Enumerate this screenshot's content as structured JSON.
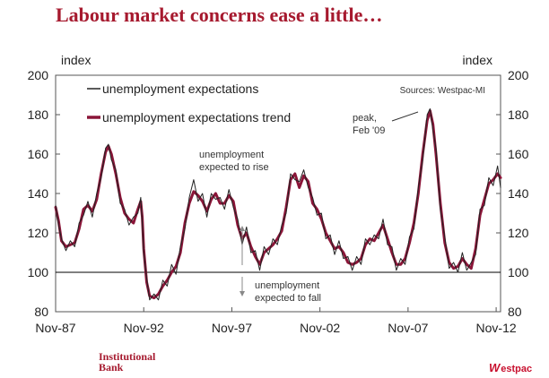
{
  "page": {
    "title": "Labour market concerns ease a little…",
    "brand_left": [
      "Institutional",
      "Bank"
    ],
    "brand_right_mark": "W",
    "brand_right": "estpac",
    "accent_color": "#a6192e"
  },
  "chart_data": {
    "type": "line",
    "title": "",
    "ylabel_left": "index",
    "ylabel_right": "index",
    "ylim": [
      80,
      200
    ],
    "yticks": [
      80,
      100,
      120,
      140,
      160,
      180,
      200
    ],
    "xlim": [
      "1987-11",
      "2013-02"
    ],
    "x_ticks": [
      "1987-11",
      "1992-11",
      "1997-11",
      "2002-11",
      "2007-11",
      "2012-11"
    ],
    "x_tick_labels": [
      "Nov-87",
      "Nov-92",
      "Nov-97",
      "Nov-02",
      "Nov-07",
      "Nov-12"
    ],
    "reference_line": 100,
    "source": "Sources: Westpac-MI",
    "legend": [
      {
        "label": "unemployment expectations",
        "color": "#222222"
      },
      {
        "label": "unemployment expectations trend",
        "color": "#8a1538"
      }
    ],
    "annotations": [
      {
        "text": [
          "unemployment",
          "expected to rise"
        ],
        "arrow": "up"
      },
      {
        "text": [
          "unemployment",
          "expected to fall"
        ],
        "arrow": "down"
      },
      {
        "text": [
          "peak,",
          "Feb '09"
        ]
      }
    ],
    "series": [
      {
        "name": "unemployment expectations trend",
        "color": "#8a1538",
        "points": [
          [
            "1987-11",
            133
          ],
          [
            "1988-01",
            126
          ],
          [
            "1988-03",
            116
          ],
          [
            "1988-06",
            113
          ],
          [
            "1988-09",
            114
          ],
          [
            "1988-12",
            115
          ],
          [
            "1989-03",
            122
          ],
          [
            "1989-06",
            132
          ],
          [
            "1989-09",
            134
          ],
          [
            "1989-12",
            131
          ],
          [
            "1990-03",
            137
          ],
          [
            "1990-06",
            150
          ],
          [
            "1990-09",
            161
          ],
          [
            "1990-11",
            164
          ],
          [
            "1991-01",
            160
          ],
          [
            "1991-04",
            150
          ],
          [
            "1991-07",
            138
          ],
          [
            "1991-10",
            130
          ],
          [
            "1992-01",
            127
          ],
          [
            "1992-04",
            125
          ],
          [
            "1992-07",
            132
          ],
          [
            "1992-09",
            136
          ],
          [
            "1992-10",
            128
          ],
          [
            "1992-11",
            112
          ],
          [
            "1993-01",
            95
          ],
          [
            "1993-03",
            88
          ],
          [
            "1993-06",
            87
          ],
          [
            "1993-09",
            89
          ],
          [
            "1993-12",
            93
          ],
          [
            "1994-03",
            96
          ],
          [
            "1994-06",
            100
          ],
          [
            "1994-09",
            103
          ],
          [
            "1994-12",
            110
          ],
          [
            "1995-03",
            125
          ],
          [
            "1995-06",
            135
          ],
          [
            "1995-09",
            141
          ],
          [
            "1995-12",
            139
          ],
          [
            "1996-03",
            136
          ],
          [
            "1996-06",
            131
          ],
          [
            "1996-09",
            137
          ],
          [
            "1996-12",
            140
          ],
          [
            "1997-03",
            135
          ],
          [
            "1997-06",
            135
          ],
          [
            "1997-09",
            139
          ],
          [
            "1997-12",
            136
          ],
          [
            "1998-03",
            124
          ],
          [
            "1998-06",
            117
          ],
          [
            "1998-09",
            120
          ],
          [
            "1998-12",
            113
          ],
          [
            "1999-03",
            108
          ],
          [
            "1999-06",
            104
          ],
          [
            "1999-09",
            110
          ],
          [
            "1999-12",
            112
          ],
          [
            "2000-03",
            114
          ],
          [
            "2000-06",
            117
          ],
          [
            "2000-09",
            121
          ],
          [
            "2000-12",
            133
          ],
          [
            "2001-03",
            147
          ],
          [
            "2001-06",
            150
          ],
          [
            "2001-09",
            143
          ],
          [
            "2001-12",
            149
          ],
          [
            "2002-03",
            146
          ],
          [
            "2002-06",
            135
          ],
          [
            "2002-09",
            132
          ],
          [
            "2002-12",
            127
          ],
          [
            "2003-03",
            120
          ],
          [
            "2003-06",
            116
          ],
          [
            "2003-09",
            112
          ],
          [
            "2003-12",
            113
          ],
          [
            "2004-03",
            110
          ],
          [
            "2004-06",
            105
          ],
          [
            "2004-09",
            104
          ],
          [
            "2004-12",
            105
          ],
          [
            "2005-03",
            107
          ],
          [
            "2005-06",
            114
          ],
          [
            "2005-09",
            117
          ],
          [
            "2005-12",
            116
          ],
          [
            "2006-03",
            120
          ],
          [
            "2006-06",
            124
          ],
          [
            "2006-09",
            117
          ],
          [
            "2006-12",
            110
          ],
          [
            "2007-03",
            104
          ],
          [
            "2007-06",
            104
          ],
          [
            "2007-09",
            107
          ],
          [
            "2007-12",
            115
          ],
          [
            "2008-03",
            125
          ],
          [
            "2008-06",
            140
          ],
          [
            "2008-09",
            160
          ],
          [
            "2008-12",
            177
          ],
          [
            "2009-02",
            182
          ],
          [
            "2009-04",
            175
          ],
          [
            "2009-06",
            160
          ],
          [
            "2009-09",
            135
          ],
          [
            "2009-12",
            115
          ],
          [
            "2010-03",
            105
          ],
          [
            "2010-06",
            102
          ],
          [
            "2010-09",
            103
          ],
          [
            "2010-12",
            107
          ],
          [
            "2011-03",
            104
          ],
          [
            "2011-06",
            102
          ],
          [
            "2011-09",
            112
          ],
          [
            "2011-12",
            129
          ],
          [
            "2012-03",
            137
          ],
          [
            "2012-06",
            145
          ],
          [
            "2012-09",
            147
          ],
          [
            "2012-12",
            150
          ],
          [
            "2013-02",
            148
          ]
        ]
      },
      {
        "name": "unemployment expectations",
        "color": "#222222",
        "points": [
          [
            "1987-11",
            134
          ],
          [
            "1988-01",
            124
          ],
          [
            "1988-03",
            117
          ],
          [
            "1988-06",
            111
          ],
          [
            "1988-09",
            116
          ],
          [
            "1988-12",
            113
          ],
          [
            "1989-03",
            125
          ],
          [
            "1989-06",
            129
          ],
          [
            "1989-09",
            136
          ],
          [
            "1989-12",
            128
          ],
          [
            "1990-03",
            140
          ],
          [
            "1990-06",
            148
          ],
          [
            "1990-09",
            163
          ],
          [
            "1990-11",
            165
          ],
          [
            "1991-01",
            157
          ],
          [
            "1991-04",
            152
          ],
          [
            "1991-07",
            135
          ],
          [
            "1991-10",
            132
          ],
          [
            "1992-01",
            124
          ],
          [
            "1992-04",
            128
          ],
          [
            "1992-07",
            130
          ],
          [
            "1992-09",
            138
          ],
          [
            "1992-10",
            125
          ],
          [
            "1992-11",
            110
          ],
          [
            "1993-01",
            97
          ],
          [
            "1993-03",
            86
          ],
          [
            "1993-06",
            89
          ],
          [
            "1993-09",
            86
          ],
          [
            "1993-12",
            96
          ],
          [
            "1994-03",
            93
          ],
          [
            "1994-06",
            104
          ],
          [
            "1994-09",
            99
          ],
          [
            "1994-12",
            113
          ],
          [
            "1995-03",
            122
          ],
          [
            "1995-06",
            138
          ],
          [
            "1995-09",
            147
          ],
          [
            "1995-12",
            136
          ],
          [
            "1996-03",
            140
          ],
          [
            "1996-06",
            128
          ],
          [
            "1996-09",
            140
          ],
          [
            "1996-12",
            137
          ],
          [
            "1997-03",
            138
          ],
          [
            "1997-06",
            132
          ],
          [
            "1997-09",
            142
          ],
          [
            "1997-12",
            133
          ],
          [
            "1998-03",
            127
          ],
          [
            "1998-06",
            114
          ],
          [
            "1998-09",
            123
          ],
          [
            "1998-12",
            110
          ],
          [
            "1999-03",
            111
          ],
          [
            "1999-06",
            101
          ],
          [
            "1999-09",
            113
          ],
          [
            "1999-12",
            109
          ],
          [
            "2000-03",
            117
          ],
          [
            "2000-06",
            114
          ],
          [
            "2000-09",
            124
          ],
          [
            "2000-12",
            130
          ],
          [
            "2001-03",
            150
          ],
          [
            "2001-06",
            147
          ],
          [
            "2001-09",
            146
          ],
          [
            "2001-12",
            152
          ],
          [
            "2002-03",
            143
          ],
          [
            "2002-06",
            138
          ],
          [
            "2002-09",
            129
          ],
          [
            "2002-12",
            130
          ],
          [
            "2003-03",
            117
          ],
          [
            "2003-06",
            119
          ],
          [
            "2003-09",
            109
          ],
          [
            "2003-12",
            116
          ],
          [
            "2004-03",
            107
          ],
          [
            "2004-06",
            108
          ],
          [
            "2004-09",
            101
          ],
          [
            "2004-12",
            108
          ],
          [
            "2005-03",
            104
          ],
          [
            "2005-06",
            117
          ],
          [
            "2005-09",
            114
          ],
          [
            "2005-12",
            119
          ],
          [
            "2006-03",
            117
          ],
          [
            "2006-06",
            127
          ],
          [
            "2006-09",
            114
          ],
          [
            "2006-12",
            113
          ],
          [
            "2007-03",
            101
          ],
          [
            "2007-06",
            107
          ],
          [
            "2007-09",
            104
          ],
          [
            "2007-12",
            118
          ],
          [
            "2008-03",
            122
          ],
          [
            "2008-06",
            143
          ],
          [
            "2008-09",
            157
          ],
          [
            "2008-12",
            180
          ],
          [
            "2009-02",
            183
          ],
          [
            "2009-04",
            172
          ],
          [
            "2009-06",
            163
          ],
          [
            "2009-09",
            132
          ],
          [
            "2009-12",
            118
          ],
          [
            "2010-03",
            102
          ],
          [
            "2010-06",
            105
          ],
          [
            "2010-09",
            100
          ],
          [
            "2010-12",
            110
          ],
          [
            "2011-03",
            101
          ],
          [
            "2011-06",
            105
          ],
          [
            "2011-09",
            109
          ],
          [
            "2011-12",
            132
          ],
          [
            "2012-03",
            134
          ],
          [
            "2012-06",
            148
          ],
          [
            "2012-09",
            144
          ],
          [
            "2012-12",
            154
          ],
          [
            "2013-02",
            143
          ]
        ]
      }
    ]
  }
}
